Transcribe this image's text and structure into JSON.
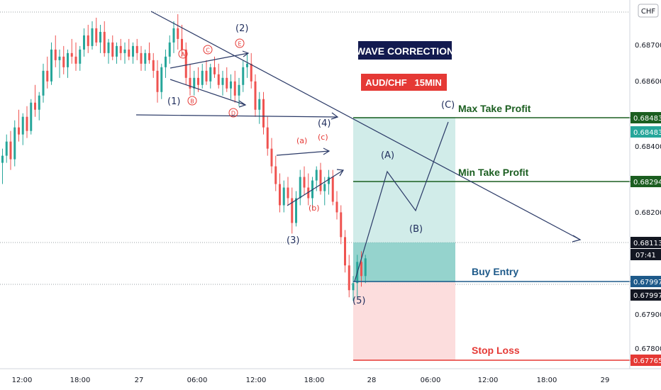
{
  "currency_badge": "CHF",
  "title_box": "WAVE CORRECTION",
  "pair_box": "AUD/CHF   15MIN",
  "colors": {
    "up": "#26a69a",
    "down": "#ef5350",
    "wave_line": "#2b3a67",
    "profit_zone": "#b2dfdb",
    "loss_zone": "#fcd9d9",
    "target_line": "#1b5e20",
    "entry_line": "#1e5a8a",
    "stop_line": "#e53935",
    "title_bg": "#131a4f",
    "pair_bg": "#e53935"
  },
  "chart_data": {
    "type": "candlestick",
    "symbol": "AUD/CHF",
    "timeframe": "15MIN",
    "x_ticks": [
      "12:00",
      "18:00",
      "27",
      "06:00",
      "12:00",
      "18:00",
      "28",
      "06:00",
      "12:00",
      "18:00",
      "29"
    ],
    "y_ticks": [
      "0.68700",
      "0.68600",
      "0.68400",
      "0.68200",
      "0.67900",
      "0.67800"
    ],
    "ylim": [
      0.6775,
      0.6882
    ],
    "price_tags": [
      {
        "value": "0.68483",
        "role": "max-take-profit",
        "bg": "#1b5e20"
      },
      {
        "value": "0.68483",
        "role": "max-take-profit-secondary",
        "bg": "#26a69a"
      },
      {
        "value": "0.68294",
        "role": "min-take-profit",
        "bg": "#1b5e20"
      },
      {
        "value": "0.68113",
        "role": "last-price",
        "bg": "#131722"
      },
      {
        "value": "07:41",
        "role": "countdown",
        "bg": "#131722"
      },
      {
        "value": "0.67997",
        "role": "buy-entry",
        "bg": "#1e5a8a"
      },
      {
        "value": "0.67997",
        "role": "buy-entry-secondary",
        "bg": "#131722"
      },
      {
        "value": "0.67765",
        "role": "stop-loss",
        "bg": "#e53935"
      }
    ],
    "levels": [
      {
        "label": "Max Take Profit",
        "value": 0.68483
      },
      {
        "label": "Min Take Profit",
        "value": 0.68294
      },
      {
        "label": "Buy Entry",
        "value": 0.67997
      },
      {
        "label": "Stop Loss",
        "value": 0.67765
      }
    ],
    "wave_labels_main": [
      "(1)",
      "(2)",
      "(3)",
      "(4)",
      "(5)"
    ],
    "wave_labels_sub_circled": [
      "A",
      "B",
      "C",
      "D",
      "E"
    ],
    "wave_labels_sub_abc": [
      "(a)",
      "(b)",
      "(c)"
    ],
    "projection_labels": [
      "(A)",
      "(B)",
      "(C)"
    ],
    "candles": [
      [
        0.6838,
        0.6842,
        0.6832,
        0.684
      ],
      [
        0.684,
        0.6846,
        0.6838,
        0.6844
      ],
      [
        0.6844,
        0.6847,
        0.6836,
        0.6839
      ],
      [
        0.6839,
        0.685,
        0.6837,
        0.6848
      ],
      [
        0.6848,
        0.6853,
        0.6844,
        0.6846
      ],
      [
        0.6846,
        0.6852,
        0.6843,
        0.6851
      ],
      [
        0.6851,
        0.6854,
        0.6845,
        0.6847
      ],
      [
        0.6847,
        0.6856,
        0.6846,
        0.6855
      ],
      [
        0.6855,
        0.686,
        0.6851,
        0.6853
      ],
      [
        0.6853,
        0.6858,
        0.685,
        0.6857
      ],
      [
        0.6857,
        0.6866,
        0.6855,
        0.6864
      ],
      [
        0.6864,
        0.6868,
        0.6859,
        0.6861
      ],
      [
        0.6861,
        0.6872,
        0.686,
        0.687
      ],
      [
        0.687,
        0.6874,
        0.6865,
        0.6867
      ],
      [
        0.6867,
        0.687,
        0.6862,
        0.6868
      ],
      [
        0.6868,
        0.6871,
        0.6863,
        0.6865
      ],
      [
        0.6865,
        0.687,
        0.6862,
        0.6869
      ],
      [
        0.6869,
        0.6873,
        0.6866,
        0.6868
      ],
      [
        0.6868,
        0.6872,
        0.6864,
        0.6866
      ],
      [
        0.6866,
        0.6871,
        0.6864,
        0.687
      ],
      [
        0.687,
        0.6876,
        0.6868,
        0.6874
      ],
      [
        0.6874,
        0.6877,
        0.6869,
        0.6871
      ],
      [
        0.6871,
        0.6878,
        0.687,
        0.6876
      ],
      [
        0.6876,
        0.6879,
        0.6871,
        0.6872
      ],
      [
        0.6872,
        0.6877,
        0.6869,
        0.6875
      ],
      [
        0.6875,
        0.6878,
        0.6868,
        0.6869
      ],
      [
        0.6869,
        0.6873,
        0.6866,
        0.6872
      ],
      [
        0.6872,
        0.6874,
        0.6867,
        0.6868
      ],
      [
        0.6868,
        0.6872,
        0.6866,
        0.6871
      ],
      [
        0.6871,
        0.6873,
        0.6867,
        0.6869
      ],
      [
        0.6869,
        0.6872,
        0.6866,
        0.687
      ],
      [
        0.687,
        0.6873,
        0.6867,
        0.6868
      ],
      [
        0.6868,
        0.6872,
        0.6866,
        0.6871
      ],
      [
        0.6871,
        0.6873,
        0.6867,
        0.6869
      ],
      [
        0.6869,
        0.6871,
        0.6864,
        0.6866
      ],
      [
        0.6866,
        0.687,
        0.6864,
        0.6869
      ],
      [
        0.6869,
        0.6872,
        0.6866,
        0.6867
      ],
      [
        0.6867,
        0.6869,
        0.6862,
        0.6864
      ],
      [
        0.6864,
        0.6867,
        0.6855,
        0.6858
      ],
      [
        0.6858,
        0.6866,
        0.6856,
        0.6865
      ],
      [
        0.6865,
        0.687,
        0.6862,
        0.6868
      ],
      [
        0.6868,
        0.6874,
        0.6866,
        0.6872
      ],
      [
        0.6872,
        0.6878,
        0.6869,
        0.6876
      ],
      [
        0.6876,
        0.688,
        0.687,
        0.6873
      ],
      [
        0.6873,
        0.6877,
        0.6868,
        0.687
      ],
      [
        0.687,
        0.6872,
        0.686,
        0.6862
      ],
      [
        0.6862,
        0.6866,
        0.6857,
        0.6859
      ],
      [
        0.6859,
        0.6864,
        0.6857,
        0.6862
      ],
      [
        0.6862,
        0.6865,
        0.6858,
        0.686
      ],
      [
        0.686,
        0.6866,
        0.6859,
        0.6864
      ],
      [
        0.6864,
        0.6867,
        0.686,
        0.6861
      ],
      [
        0.6861,
        0.6866,
        0.6859,
        0.6865
      ],
      [
        0.6865,
        0.6868,
        0.6862,
        0.6863
      ],
      [
        0.6863,
        0.6866,
        0.6859,
        0.686
      ],
      [
        0.686,
        0.6864,
        0.6857,
        0.6862
      ],
      [
        0.6862,
        0.6865,
        0.6858,
        0.6859
      ],
      [
        0.6859,
        0.6863,
        0.6856,
        0.6861
      ],
      [
        0.6861,
        0.6864,
        0.6855,
        0.6857
      ],
      [
        0.6857,
        0.6862,
        0.6854,
        0.686
      ],
      [
        0.686,
        0.6867,
        0.6858,
        0.6865
      ],
      [
        0.6865,
        0.6869,
        0.6862,
        0.6866
      ],
      [
        0.6866,
        0.6869,
        0.6859,
        0.6861
      ],
      [
        0.6861,
        0.6863,
        0.6851,
        0.6853
      ],
      [
        0.6853,
        0.6858,
        0.6849,
        0.6856
      ],
      [
        0.6856,
        0.6858,
        0.6846,
        0.6848
      ],
      [
        0.6848,
        0.6851,
        0.684,
        0.6842
      ],
      [
        0.6842,
        0.6845,
        0.6835,
        0.6837
      ],
      [
        0.6837,
        0.684,
        0.683,
        0.6832
      ],
      [
        0.6832,
        0.6835,
        0.6824,
        0.6826
      ],
      [
        0.6826,
        0.6833,
        0.6824,
        0.6831
      ],
      [
        0.6831,
        0.6834,
        0.6826,
        0.6828
      ],
      [
        0.6828,
        0.6831,
        0.6818,
        0.6821
      ],
      [
        0.6821,
        0.683,
        0.682,
        0.6828
      ],
      [
        0.6828,
        0.6836,
        0.6826,
        0.6834
      ],
      [
        0.6834,
        0.6837,
        0.6829,
        0.6831
      ],
      [
        0.6831,
        0.6835,
        0.6826,
        0.6828
      ],
      [
        0.6828,
        0.6834,
        0.6825,
        0.6833
      ],
      [
        0.6833,
        0.6837,
        0.683,
        0.6836
      ],
      [
        0.6836,
        0.6838,
        0.6829,
        0.683
      ],
      [
        0.683,
        0.6834,
        0.6826,
        0.6832
      ],
      [
        0.6832,
        0.6836,
        0.6829,
        0.6834
      ],
      [
        0.6834,
        0.6836,
        0.6826,
        0.6827
      ],
      [
        0.6827,
        0.683,
        0.6822,
        0.6824
      ],
      [
        0.6824,
        0.6826,
        0.6815,
        0.6817
      ],
      [
        0.6817,
        0.6819,
        0.6807,
        0.6809
      ],
      [
        0.6809,
        0.6812,
        0.68,
        0.6802
      ],
      [
        0.6802,
        0.6806,
        0.6799,
        0.6804
      ],
      [
        0.6804,
        0.6812,
        0.68,
        0.681
      ],
      [
        0.681,
        0.6813,
        0.6803,
        0.6806
      ],
      [
        0.6806,
        0.6812,
        0.6804,
        0.6811
      ]
    ]
  }
}
